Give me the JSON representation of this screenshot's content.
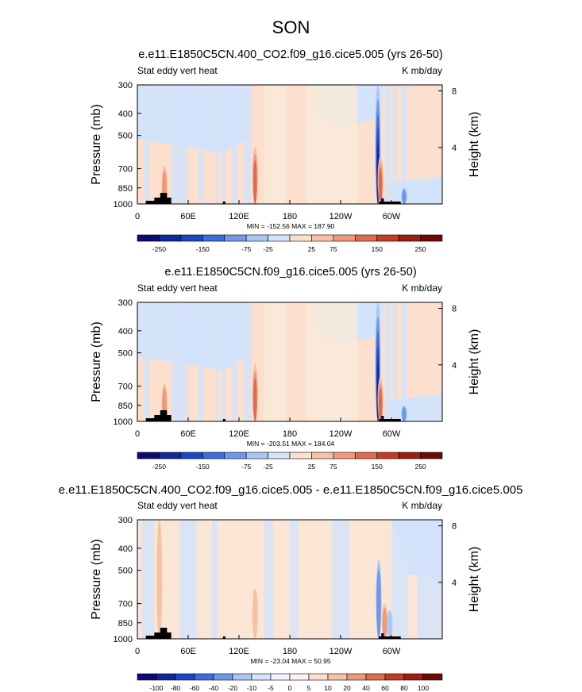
{
  "title": "SON",
  "palette_main": [
    "#0b0b74",
    "#0c2a9e",
    "#1847c8",
    "#3b6de0",
    "#6f97ea",
    "#a9c6f4",
    "#d3e3fa",
    "#fce0cd",
    "#f7c1a3",
    "#f0997a",
    "#e06a4c",
    "#c63a24",
    "#9e1d12",
    "#6e0a06"
  ],
  "palette_diff": [
    "#0b0b74",
    "#0c2a9e",
    "#1847c8",
    "#3b6de0",
    "#6f97ea",
    "#a9c6f4",
    "#d3e3fa",
    "#f3f3ff",
    "#fbf3ec",
    "#fce0cd",
    "#f7c1a3",
    "#f0997a",
    "#e06a4c",
    "#c63a24",
    "#9e1d12",
    "#6e0a06"
  ],
  "chart_data": [
    {
      "type": "heatmap",
      "title": "e.e11.E1850C5CN.400_CO2.f09_g16.cice5.005 (yrs 26-50)",
      "left_label": "Stat eddy vert heat",
      "right_label": "K mb/day",
      "ylabel": "Pressure (mb)",
      "y2label": "Height (km)",
      "yticks": [
        "300",
        "400",
        "500",
        "700",
        "850",
        "1000"
      ],
      "ytick_values": [
        300,
        400,
        500,
        700,
        850,
        1000
      ],
      "y2ticks": [
        "8",
        "4"
      ],
      "y2tick_values": [
        8,
        4
      ],
      "xticks": [
        "0",
        "60E",
        "120E",
        "180",
        "120W",
        "60W"
      ],
      "xtick_values": [
        0,
        60,
        120,
        180,
        240,
        300
      ],
      "xlim": [
        0,
        360
      ],
      "stats": "MIN = -152.56   MAX = 187.90",
      "min": -152.56,
      "max": 187.9,
      "colorbar_labels": [
        "-250",
        "-150",
        "-75",
        "-25",
        "25",
        "75",
        "150",
        "250"
      ],
      "colorbar_levels": [
        -300,
        -250,
        -200,
        -150,
        -100,
        -75,
        -50,
        -25,
        0,
        25,
        50,
        75,
        100,
        150,
        200,
        250,
        300
      ],
      "features": [
        {
          "lon": 139,
          "p_top": 560,
          "sign": 1,
          "strength": 3
        },
        {
          "lon": 284,
          "p_top": 300,
          "sign": -1,
          "strength": 5
        },
        {
          "lon": 287,
          "p_top": 620,
          "sign": 1,
          "strength": 3
        },
        {
          "lon": 32,
          "p_top": 680,
          "sign": 1,
          "strength": 2
        },
        {
          "lon": 315,
          "p_top": 850,
          "sign": -1,
          "strength": 2
        }
      ]
    },
    {
      "type": "heatmap",
      "title": "e.e11.E1850C5CN.f09_g16.cice5.005 (yrs 26-50)",
      "left_label": "Stat eddy vert heat",
      "right_label": "K mb/day",
      "ylabel": "Pressure (mb)",
      "y2label": "Height (km)",
      "yticks": [
        "300",
        "400",
        "500",
        "700",
        "850",
        "1000"
      ],
      "ytick_values": [
        300,
        400,
        500,
        700,
        850,
        1000
      ],
      "y2ticks": [
        "8",
        "4"
      ],
      "y2tick_values": [
        8,
        4
      ],
      "xticks": [
        "0",
        "60E",
        "120E",
        "180",
        "120W",
        "60W"
      ],
      "xtick_values": [
        0,
        60,
        120,
        180,
        240,
        300
      ],
      "xlim": [
        0,
        360
      ],
      "stats": "MIN = -203.51   MAX = 184.04",
      "min": -203.51,
      "max": 184.04,
      "colorbar_labels": [
        "-250",
        "-150",
        "-75",
        "-25",
        "25",
        "75",
        "150",
        "250"
      ],
      "colorbar_levels": [
        -300,
        -250,
        -200,
        -150,
        -100,
        -75,
        -50,
        -25,
        0,
        25,
        50,
        75,
        100,
        150,
        200,
        250,
        300
      ],
      "features": [
        {
          "lon": 139,
          "p_top": 560,
          "sign": 1,
          "strength": 3
        },
        {
          "lon": 284,
          "p_top": 300,
          "sign": -1,
          "strength": 5
        },
        {
          "lon": 287,
          "p_top": 640,
          "sign": 1,
          "strength": 3
        },
        {
          "lon": 32,
          "p_top": 680,
          "sign": 1,
          "strength": 2
        },
        {
          "lon": 315,
          "p_top": 850,
          "sign": -1,
          "strength": 2
        }
      ]
    },
    {
      "type": "heatmap",
      "title": "e.e11.E1850C5CN.400_CO2.f09_g16.cice5.005 - e.e11.E1850C5CN.f09_g16.cice5.005",
      "left_label": "Stat eddy vert heat",
      "right_label": "K mb/day",
      "ylabel": "Pressure (mb)",
      "y2label": "Height (km)",
      "yticks": [
        "300",
        "400",
        "500",
        "700",
        "850",
        "1000"
      ],
      "ytick_values": [
        300,
        400,
        500,
        700,
        850,
        1000
      ],
      "y2ticks": [
        "8",
        "4"
      ],
      "y2tick_values": [
        8,
        4
      ],
      "xticks": [
        "0",
        "60E",
        "120E",
        "180",
        "120W",
        "60W"
      ],
      "xtick_values": [
        0,
        60,
        120,
        180,
        240,
        300
      ],
      "xlim": [
        0,
        360
      ],
      "stats": "MIN = -23.04   MAX =  50.95",
      "min": -23.04,
      "max": 50.95,
      "colorbar_labels": [
        "-100",
        "-80",
        "-60",
        "-40",
        "-20",
        "-10",
        "-5",
        "0",
        "5",
        "10",
        "20",
        "40",
        "60",
        "80",
        "100"
      ],
      "colorbar_levels": [
        -120,
        -100,
        -80,
        -60,
        -40,
        -20,
        -10,
        -5,
        0,
        5,
        10,
        20,
        40,
        60,
        80,
        100,
        120
      ],
      "features": [
        {
          "lon": 26,
          "p_top": 300,
          "sign": 1,
          "strength": 1
        },
        {
          "lon": 139,
          "p_top": 600,
          "sign": 1,
          "strength": 1
        },
        {
          "lon": 285,
          "p_top": 450,
          "sign": -1,
          "strength": 2
        },
        {
          "lon": 292,
          "p_top": 700,
          "sign": 1,
          "strength": 2
        },
        {
          "lon": 298,
          "p_top": 750,
          "sign": -1,
          "strength": 1
        }
      ]
    }
  ]
}
